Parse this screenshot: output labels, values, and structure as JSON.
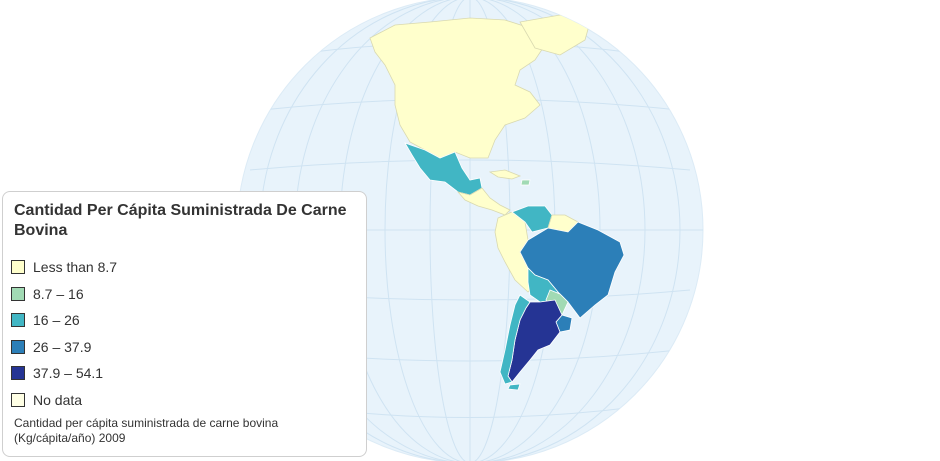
{
  "legend": {
    "title": "Cantidad Per Cápita Suministrada De Carne Bovina",
    "note": "Cantidad per cápita suministrada de carne bovina (Kg/cápita/año) 2009",
    "items": [
      {
        "label": "Less than 8.7",
        "color": "#ffffcc"
      },
      {
        "label": "8.7 – 16",
        "color": "#a1dab4"
      },
      {
        "label": "16 – 26",
        "color": "#41b6c4"
      },
      {
        "label": "26 – 37.9",
        "color": "#2c7fb8"
      },
      {
        "label": "37.9 – 54.1",
        "color": "#253494"
      },
      {
        "label": "No data",
        "color": "#ffffe5"
      }
    ]
  },
  "map": {
    "ocean_color": "#e8f3fb",
    "graticule_color": "#cfe3f2",
    "regions": [
      {
        "name": "North America",
        "class": "Less than 8.7"
      },
      {
        "name": "Mexico",
        "class": "16 – 26"
      },
      {
        "name": "Central America",
        "class": "Less than 8.7"
      },
      {
        "name": "Cuba",
        "class": "8.7 – 16"
      },
      {
        "name": "Colombia",
        "class": "Less than 8.7"
      },
      {
        "name": "Venezuela",
        "class": "16 – 26"
      },
      {
        "name": "Guianas",
        "class": "Less than 8.7"
      },
      {
        "name": "Peru",
        "class": "Less than 8.7"
      },
      {
        "name": "Brazil",
        "class": "26 – 37.9"
      },
      {
        "name": "Bolivia",
        "class": "16 – 26"
      },
      {
        "name": "Paraguay",
        "class": "8.7 – 16"
      },
      {
        "name": "Chile",
        "class": "16 – 26"
      },
      {
        "name": "Argentina",
        "class": "37.9 – 54.1"
      },
      {
        "name": "Uruguay",
        "class": "26 – 37.9"
      }
    ]
  }
}
